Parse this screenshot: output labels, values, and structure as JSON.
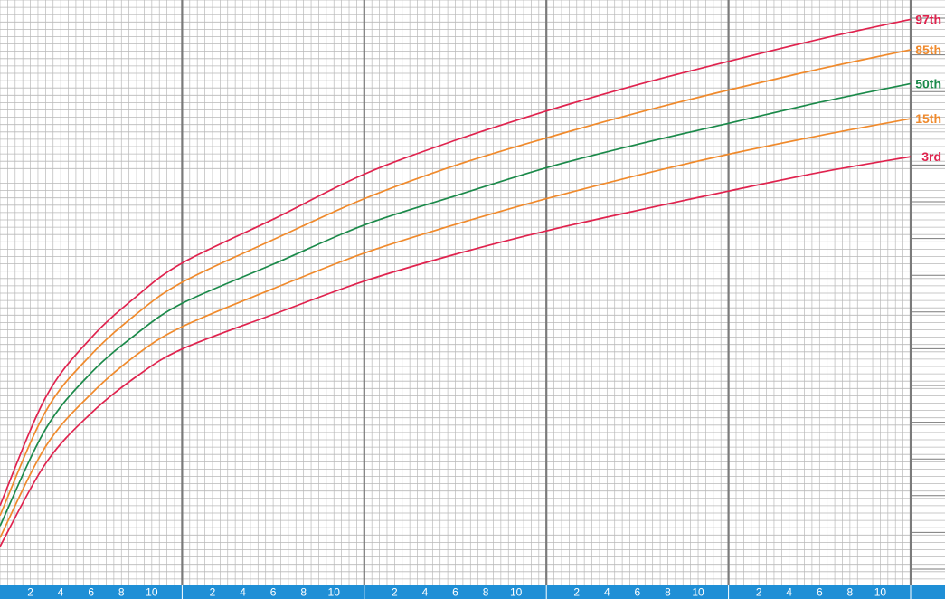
{
  "colors": {
    "background": "#ffffff",
    "minor_grid": "#b9b9b9",
    "major_grid": "#7a7a7a",
    "axis_band": "#1f8fd6",
    "tick_text": "#ffffff",
    "red": "#e0234e",
    "orange": "#f08a2c",
    "green": "#1b8a4a"
  },
  "chart_data": {
    "type": "line",
    "title": "",
    "xlabel": "",
    "ylabel": "",
    "x_unit_note": "x in months of age across 5 one-year panels (0-60)",
    "xlim": [
      0,
      60
    ],
    "ylim": [
      0,
      100
    ],
    "grid": true,
    "x_tick_labels": [
      "2",
      "4",
      "6",
      "8",
      "10"
    ],
    "x_tick_months_per_year": [
      2,
      4,
      6,
      8,
      10
    ],
    "x": [
      0,
      3,
      6,
      9,
      12,
      18,
      24,
      30,
      36,
      42,
      48,
      54,
      60
    ],
    "series": [
      {
        "name": "97th",
        "color": "red",
        "values": [
          13.5,
          32.0,
          42.2,
          49.3,
          55.0,
          62.5,
          70.2,
          76.0,
          81.0,
          85.5,
          89.5,
          93.3,
          96.7
        ]
      },
      {
        "name": "85th",
        "color": "orange",
        "values": [
          11.8,
          29.6,
          39.3,
          46.3,
          51.7,
          59.0,
          66.0,
          71.7,
          76.4,
          80.7,
          84.6,
          88.2,
          91.5
        ]
      },
      {
        "name": "50th",
        "color": "green",
        "values": [
          10.0,
          26.6,
          36.2,
          42.9,
          48.1,
          54.8,
          61.5,
          66.5,
          71.3,
          75.3,
          78.9,
          82.5,
          85.7
        ]
      },
      {
        "name": "15th",
        "color": "orange",
        "values": [
          8.0,
          23.6,
          32.6,
          39.3,
          44.1,
          50.6,
          56.7,
          61.6,
          66.0,
          70.0,
          73.6,
          76.8,
          79.7
        ]
      },
      {
        "name": "3rd",
        "color": "red",
        "values": [
          6.5,
          20.7,
          29.3,
          35.6,
          40.3,
          46.2,
          51.9,
          56.5,
          60.5,
          64.0,
          67.3,
          70.5,
          73.2
        ]
      }
    ],
    "percentile_labels": [
      "97th",
      "85th",
      "50th",
      "15th",
      "3rd"
    ]
  }
}
